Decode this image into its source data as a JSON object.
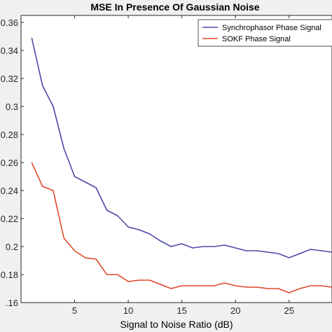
{
  "chart_data": {
    "type": "line",
    "title": "MSE In Presence Of Gaussian Noise",
    "xlabel": "Signal to Noise Ratio (dB)",
    "ylabel": "",
    "xlim": [
      0,
      29
    ],
    "ylim": [
      0.16,
      0.365
    ],
    "x_ticks": [
      5,
      10,
      15,
      20,
      25
    ],
    "x_tick_labels": [
      "5",
      "10",
      "15",
      "20",
      "25"
    ],
    "y_ticks": [
      0.16,
      0.18,
      0.2,
      0.22,
      0.24,
      0.26,
      0.28,
      0.3,
      0.32,
      0.34,
      0.36
    ],
    "y_tick_labels": [
      ".16",
      "0.18",
      "0.2",
      "0.22",
      "0.24",
      "0.26",
      "0.28",
      "0.3",
      "0.32",
      "0.34",
      "0.36"
    ],
    "grid": false,
    "legend_position": "top-right",
    "x": [
      1,
      2,
      3,
      4,
      5,
      6,
      7,
      8,
      9,
      10,
      11,
      12,
      13,
      14,
      15,
      16,
      17,
      18,
      19,
      20,
      21,
      22,
      23,
      24,
      25,
      26,
      27,
      28,
      29
    ],
    "series": [
      {
        "name": "Synchrophasor Phase Signal",
        "color": "#4a4aa8",
        "values": [
          0.349,
          0.315,
          0.3,
          0.27,
          0.25,
          0.246,
          0.242,
          0.226,
          0.222,
          0.214,
          0.212,
          0.209,
          0.204,
          0.2,
          0.202,
          0.199,
          0.2,
          0.2,
          0.201,
          0.199,
          0.197,
          0.197,
          0.196,
          0.195,
          0.192,
          0.195,
          0.198,
          0.197,
          0.196
        ]
      },
      {
        "name": "SOKF Phase Signal",
        "color": "#e0452a",
        "values": [
          0.26,
          0.243,
          0.24,
          0.206,
          0.197,
          0.192,
          0.191,
          0.18,
          0.18,
          0.175,
          0.176,
          0.176,
          0.173,
          0.17,
          0.172,
          0.172,
          0.172,
          0.172,
          0.174,
          0.172,
          0.171,
          0.171,
          0.17,
          0.17,
          0.167,
          0.17,
          0.172,
          0.172,
          0.171
        ]
      }
    ]
  }
}
